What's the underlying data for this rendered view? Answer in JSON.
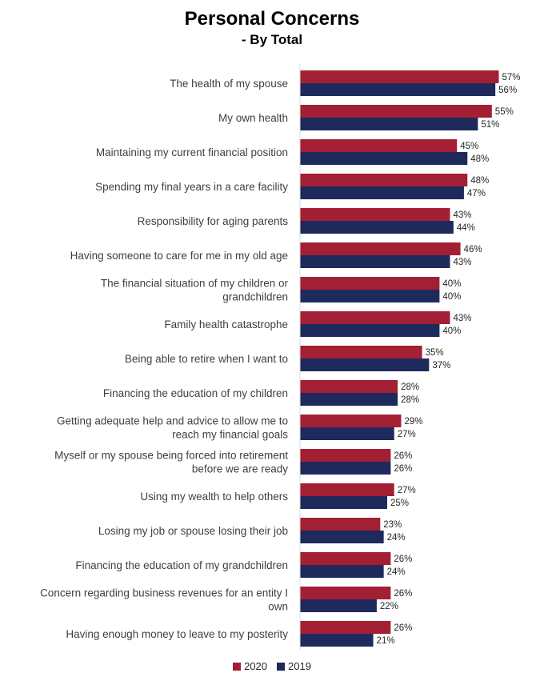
{
  "chart_data": {
    "type": "bar",
    "orientation": "horizontal",
    "title": "Personal Concerns",
    "subtitle": "- By Total",
    "categories": [
      "The health of my spouse",
      "My own health",
      "Maintaining my current financial position",
      "Spending my final years in a care facility",
      "Responsibility for aging parents",
      "Having someone to care for me in my old age",
      "The financial situation of my children or grandchildren",
      "Family health catastrophe",
      "Being able to retire when I want to",
      "Financing the education of my children",
      "Getting adequate help and advice to allow me to reach my financial goals",
      "Myself or my spouse being forced into retirement before we are ready",
      "Using my wealth to help others",
      "Losing my job or spouse losing their job",
      "Financing the education of my grandchildren",
      "Concern regarding business revenues for an entity I own",
      "Having enough money to leave to my posterity"
    ],
    "category_lines": [
      [
        "The health of my spouse"
      ],
      [
        "My own health"
      ],
      [
        "Maintaining my current financial position"
      ],
      [
        "Spending my final years in a care facility"
      ],
      [
        "Responsibility for aging parents"
      ],
      [
        "Having someone to care for me in my old age"
      ],
      [
        "The financial situation of my children or",
        "grandchildren"
      ],
      [
        "Family health catastrophe"
      ],
      [
        "Being able to retire when I want to"
      ],
      [
        "Financing the education of my children"
      ],
      [
        "Getting adequate help and advice to allow me to",
        "reach my financial goals"
      ],
      [
        "Myself or my spouse being forced into retirement",
        "before we are ready"
      ],
      [
        "Using my wealth to help others"
      ],
      [
        "Losing my job or spouse losing their job"
      ],
      [
        "Financing the education of my grandchildren"
      ],
      [
        "Concern regarding business revenues for an entity I",
        "own"
      ],
      [
        "Having enough money to leave to my posterity"
      ]
    ],
    "series": [
      {
        "name": "2020",
        "color": "#a31f34",
        "values": [
          57,
          55,
          45,
          48,
          43,
          46,
          40,
          43,
          35,
          28,
          29,
          26,
          27,
          23,
          26,
          26,
          26
        ]
      },
      {
        "name": "2019",
        "color": "#1f2a5c",
        "values": [
          56,
          51,
          48,
          47,
          44,
          43,
          40,
          40,
          37,
          28,
          27,
          26,
          25,
          24,
          24,
          22,
          21
        ]
      }
    ],
    "value_suffix": "%",
    "xlim": [
      0,
      100
    ],
    "grid": false,
    "legend_position": "bottom"
  }
}
